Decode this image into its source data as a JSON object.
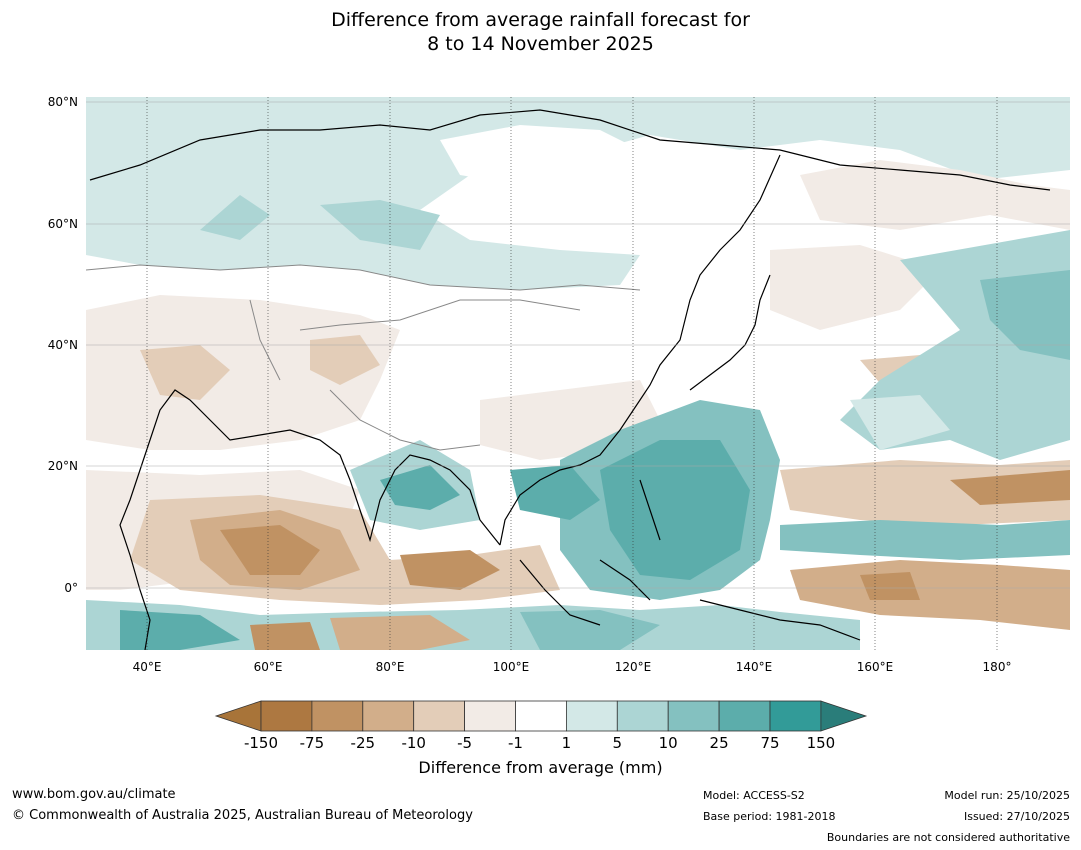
{
  "title_line1": "Difference from average rainfall forecast for",
  "title_line2": "8 to 14 November 2025",
  "map": {
    "lat_labels": [
      "80°N",
      "60°N",
      "40°N",
      "20°N",
      "0°"
    ],
    "lon_labels": [
      "40°E",
      "60°E",
      "80°E",
      "100°E",
      "120°E",
      "140°E",
      "160°E",
      "180°"
    ]
  },
  "legend": {
    "title": "Difference from average (mm)",
    "ticks": [
      "-150",
      "-75",
      "-25",
      "-10",
      "-5",
      "-1",
      "1",
      "5",
      "10",
      "25",
      "75",
      "150"
    ],
    "colors": [
      "#a87439",
      "#ad7841",
      "#c09263",
      "#d2ae8a",
      "#e3cdb8",
      "#f2ebe6",
      "#ffffff",
      "#d3e8e7",
      "#acd5d4",
      "#84c1c0",
      "#5cadab",
      "#329b98",
      "#2a7d7a"
    ]
  },
  "footer": {
    "url": "www.bom.gov.au/climate",
    "copyright": "© Commonwealth of Australia 2025, Australian Bureau of Meteorology",
    "model": "Model: ACCESS-S2",
    "base_period": "Base period: 1981-2018",
    "model_run": "Model run: 25/10/2025",
    "issued": "Issued: 27/10/2025",
    "boundaries": "Boundaries are not considered authoritative"
  }
}
